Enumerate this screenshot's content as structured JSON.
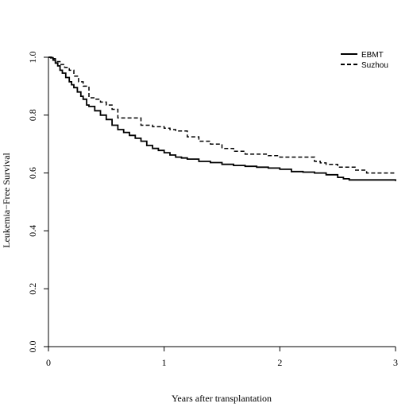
{
  "chart_data": {
    "type": "line",
    "title": "",
    "xlabel": "Years after transplantation",
    "ylabel": "Leukemia−Free Survival",
    "xlim": [
      0,
      3
    ],
    "ylim": [
      0,
      1
    ],
    "x_ticks": [
      "0",
      "1",
      "2",
      "3"
    ],
    "y_ticks": [
      "0.0",
      "0.2",
      "0.4",
      "0.6",
      "0.8",
      "1.0"
    ],
    "grid": false,
    "legend_position": "top-right",
    "series": [
      {
        "name": "EBMT",
        "line_style": "solid",
        "color": "#000000",
        "x": [
          0,
          0.02,
          0.04,
          0.06,
          0.08,
          0.1,
          0.12,
          0.15,
          0.18,
          0.2,
          0.22,
          0.25,
          0.28,
          0.3,
          0.33,
          0.35,
          0.4,
          0.45,
          0.5,
          0.55,
          0.6,
          0.65,
          0.7,
          0.75,
          0.8,
          0.85,
          0.9,
          0.95,
          1.0,
          1.05,
          1.1,
          1.15,
          1.2,
          1.3,
          1.4,
          1.5,
          1.6,
          1.7,
          1.8,
          1.9,
          2.0,
          2.1,
          2.2,
          2.3,
          2.4,
          2.5,
          2.55,
          2.6,
          2.7,
          2.8,
          2.9,
          2.95,
          3.0
        ],
        "y": [
          1.0,
          0.998,
          0.99,
          0.98,
          0.97,
          0.955,
          0.945,
          0.93,
          0.915,
          0.905,
          0.895,
          0.88,
          0.865,
          0.855,
          0.835,
          0.83,
          0.815,
          0.8,
          0.785,
          0.765,
          0.75,
          0.74,
          0.73,
          0.72,
          0.71,
          0.695,
          0.685,
          0.678,
          0.67,
          0.662,
          0.655,
          0.652,
          0.648,
          0.64,
          0.636,
          0.63,
          0.626,
          0.623,
          0.62,
          0.617,
          0.613,
          0.605,
          0.603,
          0.6,
          0.594,
          0.585,
          0.58,
          0.576,
          0.576,
          0.576,
          0.576,
          0.576,
          0.572
        ]
      },
      {
        "name": "Suzhou",
        "line_style": "dashed",
        "color": "#000000",
        "x": [
          0,
          0.03,
          0.06,
          0.1,
          0.14,
          0.18,
          0.22,
          0.26,
          0.3,
          0.35,
          0.4,
          0.45,
          0.5,
          0.55,
          0.6,
          0.7,
          0.8,
          0.9,
          1.0,
          1.05,
          1.1,
          1.2,
          1.3,
          1.4,
          1.5,
          1.6,
          1.7,
          1.8,
          1.9,
          2.0,
          2.1,
          2.2,
          2.3,
          2.35,
          2.4,
          2.5,
          2.6,
          2.65,
          2.75,
          2.85,
          3.0
        ],
        "y": [
          1.0,
          0.995,
          0.985,
          0.975,
          0.965,
          0.955,
          0.935,
          0.915,
          0.9,
          0.86,
          0.855,
          0.845,
          0.835,
          0.82,
          0.79,
          0.79,
          0.765,
          0.76,
          0.755,
          0.75,
          0.745,
          0.725,
          0.71,
          0.7,
          0.685,
          0.675,
          0.665,
          0.665,
          0.66,
          0.655,
          0.655,
          0.655,
          0.64,
          0.635,
          0.63,
          0.62,
          0.62,
          0.61,
          0.6,
          0.6,
          0.6
        ]
      }
    ]
  }
}
